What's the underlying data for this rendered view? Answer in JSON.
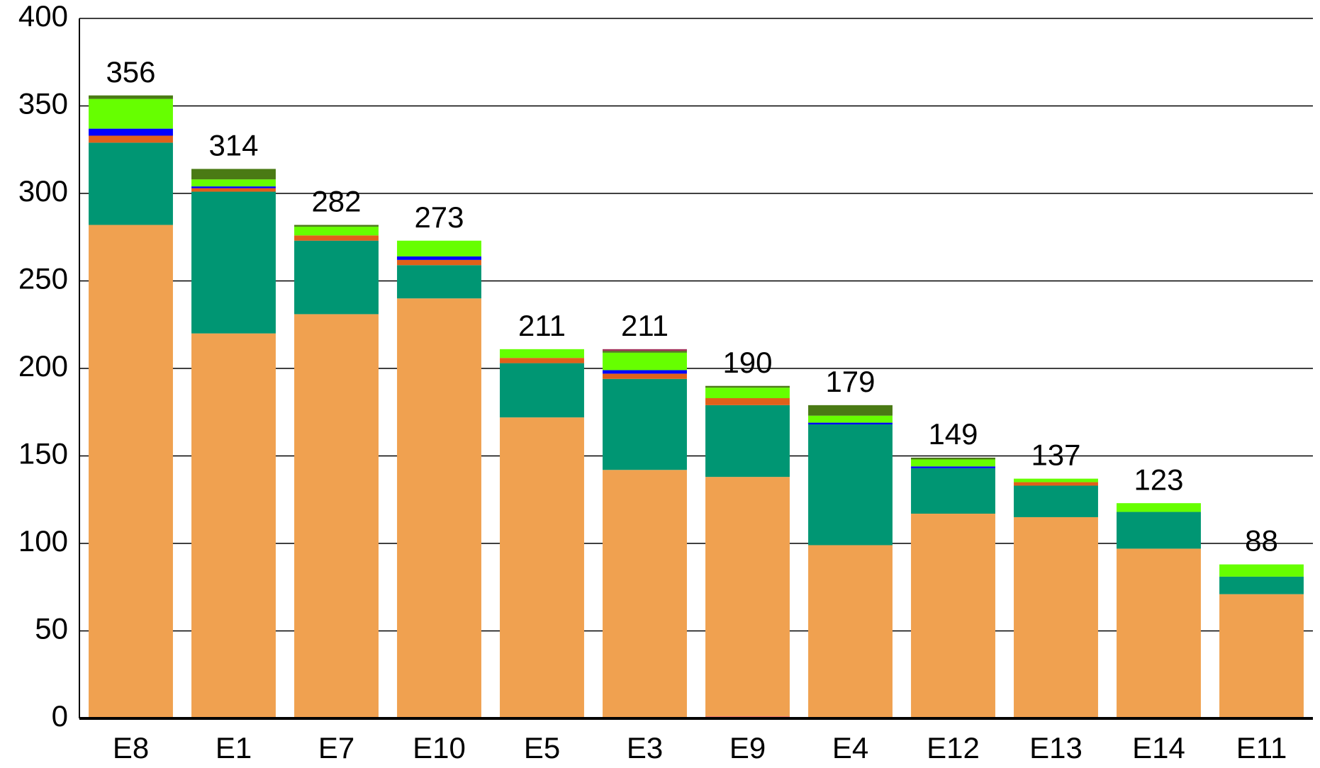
{
  "chart_data": {
    "type": "stacked_bar",
    "categories": [
      "E8",
      "E1",
      "E7",
      "E10",
      "E5",
      "E3",
      "E9",
      "E4",
      "E12",
      "E13",
      "E14",
      "E11"
    ],
    "series": [
      {
        "color": "#e8408a",
        "values": [
          0,
          0,
          0,
          0,
          0,
          0,
          1,
          0,
          0,
          0,
          0,
          0
        ]
      },
      {
        "color": "#f0a150",
        "values": [
          282,
          220,
          231,
          240,
          172,
          142,
          137,
          99,
          117,
          115,
          97,
          71
        ]
      },
      {
        "color": "#009673",
        "values": [
          47,
          81,
          42,
          19,
          31,
          52,
          41,
          69,
          26,
          18,
          21,
          10
        ]
      },
      {
        "color": "#e0601a",
        "values": [
          4,
          2,
          3,
          3,
          3,
          3,
          4,
          0,
          0,
          2,
          0,
          0
        ]
      },
      {
        "color": "#0000ff",
        "values": [
          4,
          1,
          0,
          2,
          0,
          2,
          0,
          1,
          1,
          0,
          0,
          0
        ]
      },
      {
        "color": "#66ff00",
        "values": [
          17,
          4,
          5,
          9,
          5,
          10,
          6,
          4,
          4,
          2,
          5,
          7
        ]
      },
      {
        "color": "#4a7a14",
        "values": [
          2,
          6,
          1,
          0,
          0,
          1,
          1,
          6,
          1,
          0,
          0,
          0
        ]
      },
      {
        "color": "#a03058",
        "values": [
          0,
          0,
          0,
          0,
          0,
          1,
          0,
          0,
          0,
          0,
          0,
          0
        ]
      }
    ],
    "totals": [
      356,
      314,
      282,
      273,
      211,
      211,
      190,
      179,
      149,
      137,
      123,
      88
    ],
    "ylim": [
      0,
      400
    ],
    "yticks": [
      0,
      50,
      100,
      150,
      200,
      250,
      300,
      350,
      400
    ],
    "grid": true
  }
}
